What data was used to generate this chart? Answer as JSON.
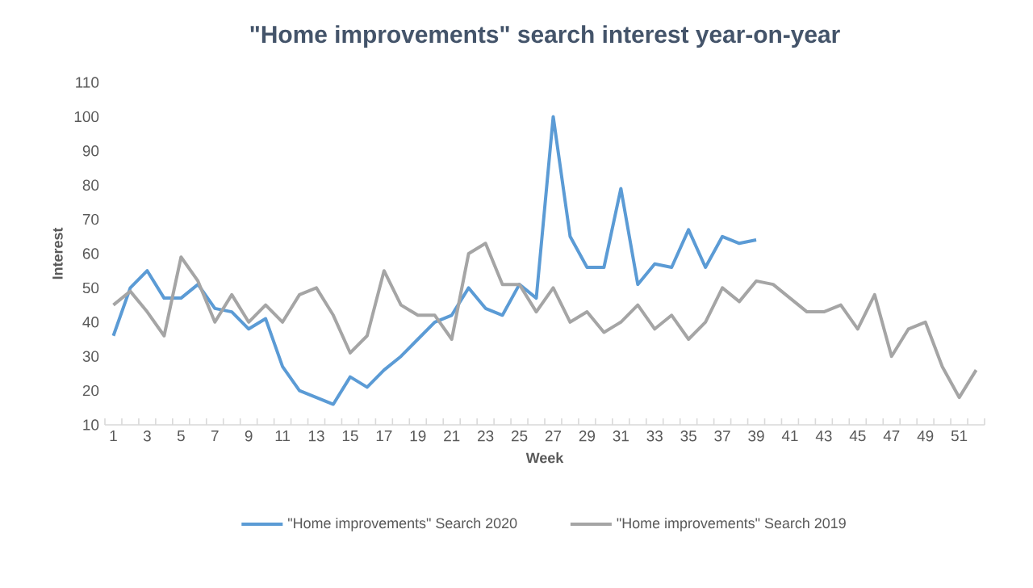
{
  "chart_data": {
    "type": "line",
    "title": "\"Home improvements\" search interest year-on-year",
    "xlabel": "Week",
    "ylabel": "Interest",
    "categories": [
      "1",
      null,
      "3",
      null,
      "5",
      null,
      "7",
      null,
      "9",
      null,
      "11",
      null,
      "13",
      null,
      "15",
      null,
      "17",
      null,
      "19",
      null,
      "21",
      null,
      "23",
      null,
      "25",
      null,
      "27",
      null,
      "29",
      null,
      "31",
      null,
      "33",
      null,
      "35",
      null,
      "37",
      null,
      "39",
      null,
      "41",
      null,
      "43",
      null,
      "45",
      null,
      "47",
      null,
      "49",
      null,
      "51",
      null
    ],
    "series": [
      {
        "name": "\"Home improvements\" Search 2020",
        "color": "#5b9bd5",
        "values": [
          36,
          50,
          55,
          47,
          47,
          51,
          44,
          43,
          38,
          41,
          27,
          20,
          18,
          16,
          24,
          21,
          26,
          30,
          35,
          40,
          42,
          50,
          44,
          42,
          51,
          47,
          100,
          65,
          56,
          56,
          79,
          51,
          57,
          56,
          67,
          56,
          65,
          63,
          64,
          null,
          null,
          null,
          null,
          null,
          null,
          null,
          null,
          null,
          null,
          null,
          null,
          null
        ]
      },
      {
        "name": "\"Home improvements\" Search 2019",
        "color": "#a5a5a5",
        "values": [
          45,
          49,
          43,
          36,
          59,
          52,
          40,
          48,
          40,
          45,
          40,
          48,
          50,
          42,
          31,
          36,
          55,
          45,
          42,
          42,
          35,
          60,
          63,
          51,
          51,
          43,
          50,
          40,
          43,
          37,
          40,
          45,
          38,
          42,
          35,
          40,
          50,
          46,
          52,
          51,
          47,
          43,
          43,
          45,
          38,
          48,
          30,
          38,
          40,
          27,
          18,
          26
        ]
      }
    ],
    "ylim": [
      10,
      110
    ],
    "yticks": [
      10,
      20,
      30,
      40,
      50,
      60,
      70,
      80,
      90,
      100,
      110
    ],
    "grid": false,
    "legend": "bottom",
    "marker": "none",
    "line_style": "solid"
  }
}
